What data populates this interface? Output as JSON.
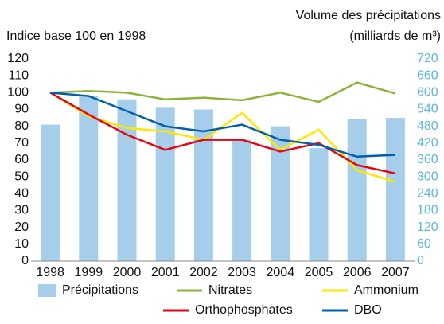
{
  "chart_data": {
    "type": "combo",
    "title": "Volume des précipitations",
    "subtitle": "(milliards de m³)",
    "y_label": "Indice base 100 en 1998",
    "categories": [
      "1998",
      "1999",
      "2000",
      "2001",
      "2002",
      "2003",
      "2004",
      "2005",
      "2006",
      "2007"
    ],
    "series": [
      {
        "name": "Précipitations",
        "type": "bar",
        "axis": "y2",
        "color": "#a6cde9",
        "values": [
          486,
          588,
          576,
          546,
          540,
          432,
          480,
          402,
          507,
          510
        ]
      },
      {
        "name": "Nitrates",
        "type": "line",
        "color": "#8db33a",
        "values": [
          100,
          101,
          100,
          96,
          97,
          95.5,
          100,
          94.5,
          106,
          99.5
        ]
      },
      {
        "name": "Ammonium",
        "type": "line",
        "color": "#ffe600",
        "values": [
          100,
          86,
          79,
          77,
          72,
          88,
          66,
          78,
          54,
          47
        ]
      },
      {
        "name": "Orthophosphates",
        "type": "line",
        "color": "#e30613",
        "values": [
          100,
          87,
          75,
          66,
          72,
          72,
          65,
          70,
          57,
          52
        ]
      },
      {
        "name": "DBO",
        "type": "line",
        "color": "#005fa8",
        "values": [
          100,
          98,
          89,
          80,
          77,
          81,
          72,
          69,
          62,
          63
        ]
      }
    ],
    "ylim": [
      0,
      120
    ],
    "yticks": [
      0,
      10,
      20,
      30,
      40,
      50,
      60,
      70,
      80,
      90,
      100,
      110,
      120
    ],
    "y2lim": [
      0,
      720
    ],
    "y2ticks": [
      0,
      60,
      120,
      180,
      240,
      300,
      360,
      420,
      480,
      540,
      600,
      660,
      720
    ],
    "y2_color": "#5bb5e0",
    "grid": false
  }
}
